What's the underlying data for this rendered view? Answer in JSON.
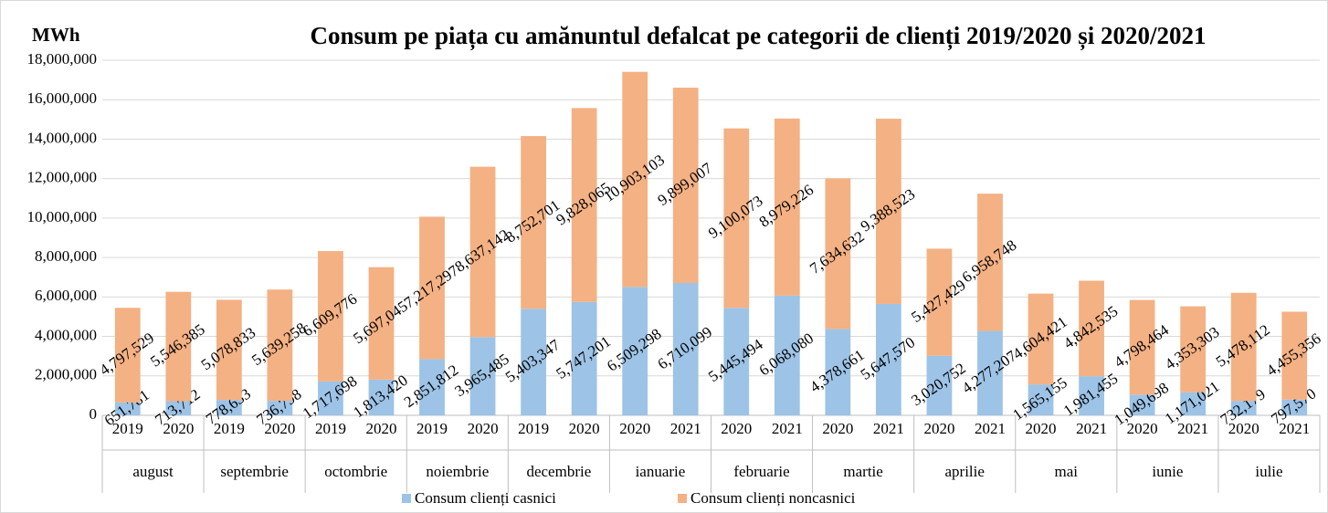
{
  "chart_data": {
    "type": "stacked_bar",
    "title": "Consum pe piața cu amănuntul defalcat pe categorii de clienți 2019/2020 și 2020/2021",
    "ylabel": "MWh",
    "groups": [
      "august",
      "septembrie",
      "octombrie",
      "noiembrie",
      "decembrie",
      "ianuarie",
      "februarie",
      "martie",
      "aprilie",
      "mai",
      "iunie",
      "iulie"
    ],
    "categories": [
      "2019",
      "2020",
      "2019",
      "2020",
      "2019",
      "2020",
      "2019",
      "2020",
      "2019",
      "2020",
      "2020",
      "2021",
      "2020",
      "2021",
      "2020",
      "2021",
      "2020",
      "2021",
      "2020",
      "2021",
      "2020",
      "2021",
      "2020",
      "2021"
    ],
    "series": [
      {
        "name": "Consum clienți casnici",
        "color": "#9dc3e6",
        "values": [
          651781,
          713712,
          778653,
          736798,
          1717698,
          1813420,
          2851812,
          3965485,
          5403347,
          5747201,
          6509298,
          6710099,
          5445494,
          6068080,
          4378661,
          5647570,
          3020752,
          4277207,
          1565155,
          1981455,
          1049698,
          1171021,
          732179,
          797570
        ],
        "value_labels": [
          "651,781",
          "713,712",
          "778,653",
          "736,798",
          "1,717,698",
          "1,813,420",
          "2,851,812",
          "3,965,485",
          "5,403,347",
          "5,747,201",
          "6,509,298",
          "6,710,099",
          "5,445,494",
          "6,068,080",
          "4,378,661",
          "5,647,570",
          "3,020,752",
          "4,277,207",
          "1,565,155",
          "1,981,455",
          "1,049,698",
          "1,171,021",
          "732,179",
          "797,570"
        ]
      },
      {
        "name": "Consum clienți noncasnici",
        "color": "#f4b183",
        "values": [
          4797529,
          5546385,
          5078833,
          5639258,
          6609776,
          5697045,
          7217297,
          8637142,
          8752701,
          9828065,
          10903103,
          9899007,
          9100073,
          8979226,
          7634632,
          9388523,
          5427429,
          6958748,
          4604421,
          4842535,
          4798464,
          4353303,
          5478112,
          4455356
        ],
        "value_labels": [
          "4,797,529",
          "5,546,385",
          "5,078,833",
          "5,639,258",
          "6,609,776",
          "5,697,045",
          "7,217,297",
          "8,637,142",
          "8,752,701",
          "9,828,065",
          "10,903,103",
          "9,899,007",
          "9,100,073",
          "8,979,226",
          "7,634,632",
          "9,388,523",
          "5,427,429",
          "6,958,748",
          "4,604,421",
          "4,842,535",
          "4,798,464",
          "4,353,303",
          "5,478,112",
          "4,455,356"
        ]
      }
    ],
    "ylim": [
      0,
      18000000
    ],
    "yticks": [
      0,
      {
        "value": 2000000,
        "label": "2,000,000"
      },
      {
        "value": 4000000,
        "label": "4,000,000"
      },
      {
        "value": 6000000,
        "label": "6,000,000"
      },
      {
        "value": 8000000,
        "label": "8,000,000"
      },
      {
        "value": 10000000,
        "label": "10,000,000"
      },
      {
        "value": 12000000,
        "label": "12,000,000"
      },
      {
        "value": 14000000,
        "label": "14,000,000"
      },
      {
        "value": 16000000,
        "label": "16,000,000"
      },
      {
        "value": 18000000,
        "label": "18,000,000"
      }
    ],
    "grid": true,
    "legend": "bottom"
  }
}
